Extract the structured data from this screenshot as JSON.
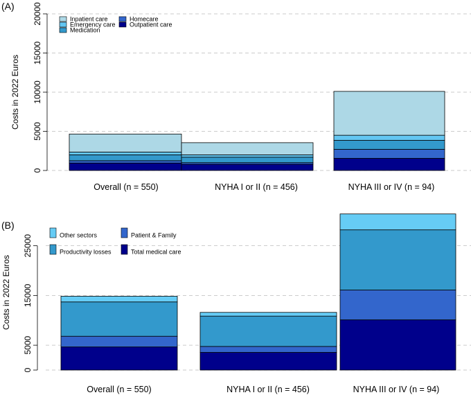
{
  "colors": {
    "inpatient": "#add8e6",
    "emergency": "#63c6f2",
    "medication": "#3399cc",
    "homecare": "#3366cc",
    "outpatient": "#00008b",
    "other_sectors": "#66ccf5",
    "productivity": "#3399cc",
    "patient_family": "#3366cc",
    "total_medical": "#00008b",
    "grid": "#bbbbbb"
  },
  "chart_data": [
    {
      "panel_label": "(A)",
      "type": "bar",
      "stacked": true,
      "ylabel": "Costs in 2022 Euros",
      "ylim": [
        0,
        20000
      ],
      "yticks": [
        0,
        5000,
        10000,
        15000,
        20000
      ],
      "grid": true,
      "legend_position": "top-left",
      "categories": [
        "Overall (n = 550)",
        "NYHA I or II (n = 456)",
        "NYHA III or IV (n = 94)"
      ],
      "series": [
        {
          "name": "Outpatient care",
          "color_key": "outpatient",
          "values": [
            950,
            800,
            1550
          ]
        },
        {
          "name": "Homecare",
          "color_key": "homecare",
          "values": [
            300,
            200,
            1150
          ]
        },
        {
          "name": "Medication",
          "color_key": "medication",
          "values": [
            750,
            700,
            1150
          ]
        },
        {
          "name": "Emergency care",
          "color_key": "emergency",
          "values": [
            350,
            300,
            650
          ]
        },
        {
          "name": "Inpatient care",
          "color_key": "inpatient",
          "values": [
            2300,
            1550,
            5600
          ]
        }
      ],
      "legend": [
        {
          "label": "Inpatient care",
          "color_key": "inpatient"
        },
        {
          "label": "Emergency care",
          "color_key": "emergency"
        },
        {
          "label": "Medication",
          "color_key": "medication"
        },
        {
          "label": "Homecare",
          "color_key": "homecare"
        },
        {
          "label": "Outpatient care",
          "color_key": "outpatient"
        }
      ]
    },
    {
      "panel_label": "(B)",
      "type": "bar",
      "stacked": true,
      "ylabel": "Costs in 2022 Euros",
      "ylim": [
        0,
        31500
      ],
      "yticks": [
        0,
        5000,
        15000,
        25000
      ],
      "grid": true,
      "legend_position": "top-left",
      "categories": [
        "Overall (n = 550)",
        "NYHA I or II (n = 456)",
        "NYHA III or IV (n = 94)"
      ],
      "series": [
        {
          "name": "Total medical care",
          "color_key": "total_medical",
          "values": [
            4650,
            3550,
            10100
          ]
        },
        {
          "name": "Patient & Family",
          "color_key": "patient_family",
          "values": [
            2150,
            1200,
            6000
          ]
        },
        {
          "name": "Productivity losses",
          "color_key": "productivity",
          "values": [
            6900,
            6100,
            12100
          ]
        },
        {
          "name": "Other sectors",
          "color_key": "other_sectors",
          "values": [
            1150,
            750,
            3200
          ]
        }
      ],
      "legend": [
        {
          "label": "Other sectors",
          "color_key": "other_sectors"
        },
        {
          "label": "Patient & Family",
          "color_key": "patient_family"
        },
        {
          "label": "Productivity losses",
          "color_key": "productivity"
        },
        {
          "label": "Total medical care",
          "color_key": "total_medical"
        }
      ]
    }
  ]
}
